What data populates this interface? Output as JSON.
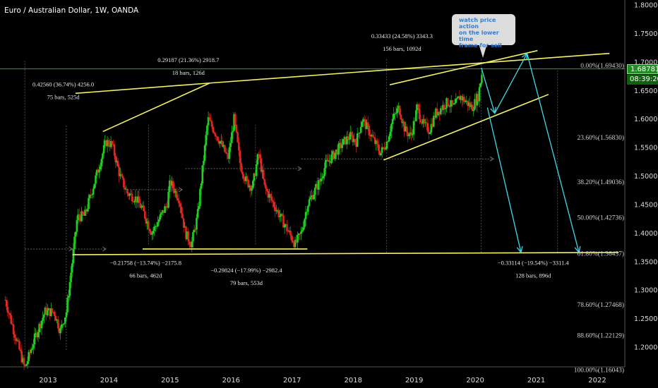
{
  "header": {
    "symbol_title": "Euro / Australian Dollar, 1W, OANDA"
  },
  "price_tags": {
    "current": "1.68781",
    "countdown": "08:39:20"
  },
  "callout": {
    "line1": "watch price action",
    "line2": "on the lower time",
    "line3": "frame for sell"
  },
  "colors": {
    "up": "#1fd11f",
    "down": "#e0261f",
    "trend": "#f5f06a",
    "projection": "#3fd9e6",
    "current_line": "#35b935",
    "text": "#ffffff",
    "axis_text": "#dddddd"
  },
  "chart_data": {
    "type": "candlestick",
    "x_labels": [
      "2013",
      "2014",
      "2015",
      "2016",
      "2017",
      "2018",
      "2019",
      "2020",
      "2021",
      "2022"
    ],
    "y_ticks": [
      "1.80000",
      "1.75000",
      "1.70000",
      "1.65000",
      "1.60000",
      "1.55000",
      "1.50000",
      "1.45000",
      "1.40000",
      "1.35000",
      "1.30000",
      "1.25000",
      "1.20000"
    ],
    "ylim": [
      1.155,
      1.81
    ],
    "xlim": [
      2012.28,
      2022.4
    ],
    "grid": false,
    "current_price": 1.68781,
    "fib_levels": [
      {
        "label": "0.00%(1.69430)",
        "price": 1.6943
      },
      {
        "label": "23.60%(1.56830)",
        "price": 1.5683
      },
      {
        "label": "38.20%(1.49036)",
        "price": 1.49036
      },
      {
        "label": "50.00%(1.42736)",
        "price": 1.42736
      },
      {
        "label": "61.80%(1.36437)",
        "price": 1.36437
      },
      {
        "label": "78.60%(1.27468)",
        "price": 1.27468
      },
      {
        "label": "88.60%(1.22129)",
        "price": 1.22129
      },
      {
        "label": "100.00%(1.16043)",
        "price": 1.16043
      }
    ],
    "path_points": [
      [
        2012.3,
        1.283
      ],
      [
        2012.45,
        1.225
      ],
      [
        2012.62,
        1.162
      ],
      [
        2012.78,
        1.215
      ],
      [
        2012.95,
        1.262
      ],
      [
        2013.1,
        1.262
      ],
      [
        2013.2,
        1.228
      ],
      [
        2013.3,
        1.262
      ],
      [
        2013.4,
        1.352
      ],
      [
        2013.48,
        1.428
      ],
      [
        2013.6,
        1.43
      ],
      [
        2013.75,
        1.485
      ],
      [
        2013.95,
        1.56
      ],
      [
        2014.05,
        1.555
      ],
      [
        2014.18,
        1.5
      ],
      [
        2014.3,
        1.47
      ],
      [
        2014.45,
        1.46
      ],
      [
        2014.55,
        1.44
      ],
      [
        2014.7,
        1.4
      ],
      [
        2014.85,
        1.43
      ],
      [
        2014.95,
        1.45
      ],
      [
        2015.0,
        1.49
      ],
      [
        2015.15,
        1.46
      ],
      [
        2015.25,
        1.4
      ],
      [
        2015.35,
        1.38
      ],
      [
        2015.45,
        1.43
      ],
      [
        2015.55,
        1.53
      ],
      [
        2015.62,
        1.6
      ],
      [
        2015.72,
        1.58
      ],
      [
        2015.82,
        1.56
      ],
      [
        2015.95,
        1.53
      ],
      [
        2016.05,
        1.6
      ],
      [
        2016.15,
        1.52
      ],
      [
        2016.25,
        1.49
      ],
      [
        2016.35,
        1.48
      ],
      [
        2016.45,
        1.54
      ],
      [
        2016.55,
        1.48
      ],
      [
        2016.65,
        1.46
      ],
      [
        2016.75,
        1.44
      ],
      [
        2016.85,
        1.42
      ],
      [
        2016.95,
        1.4
      ],
      [
        2017.05,
        1.38
      ],
      [
        2017.15,
        1.4
      ],
      [
        2017.25,
        1.45
      ],
      [
        2017.35,
        1.47
      ],
      [
        2017.45,
        1.49
      ],
      [
        2017.55,
        1.52
      ],
      [
        2017.7,
        1.54
      ],
      [
        2017.85,
        1.56
      ],
      [
        2017.95,
        1.57
      ],
      [
        2018.05,
        1.56
      ],
      [
        2018.15,
        1.6
      ],
      [
        2018.25,
        1.58
      ],
      [
        2018.35,
        1.56
      ],
      [
        2018.45,
        1.54
      ],
      [
        2018.55,
        1.56
      ],
      [
        2018.65,
        1.6
      ],
      [
        2018.75,
        1.62
      ],
      [
        2018.85,
        1.58
      ],
      [
        2018.95,
        1.57
      ],
      [
        2019.05,
        1.62
      ],
      [
        2019.15,
        1.59
      ],
      [
        2019.25,
        1.58
      ],
      [
        2019.35,
        1.61
      ],
      [
        2019.45,
        1.62
      ],
      [
        2019.55,
        1.63
      ],
      [
        2019.65,
        1.62
      ],
      [
        2019.75,
        1.64
      ],
      [
        2019.85,
        1.63
      ],
      [
        2019.95,
        1.62
      ],
      [
        2020.05,
        1.64
      ],
      [
        2020.12,
        1.688
      ]
    ],
    "trendlines": [
      {
        "from": [
          2013.45,
          1.645
        ],
        "to": [
          2015.65,
          1.663
        ]
      },
      {
        "from": [
          2013.9,
          1.578
        ],
        "to": [
          2015.65,
          1.663
        ]
      },
      {
        "from": [
          2015.65,
          1.663
        ],
        "to": [
          2022.2,
          1.715
        ]
      },
      {
        "from": [
          2018.6,
          1.66
        ],
        "to": [
          2021.02,
          1.72
        ]
      },
      {
        "from": [
          2018.5,
          1.528
        ],
        "to": [
          2021.2,
          1.643
        ]
      },
      {
        "from": [
          2013.4,
          1.362
        ],
        "to": [
          2022.35,
          1.366
        ]
      },
      {
        "from": [
          2014.55,
          1.372
        ],
        "to": [
          2017.25,
          1.372
        ]
      }
    ],
    "projections": [
      {
        "from": [
          2020.1,
          1.69
        ],
        "to": [
          2020.32,
          1.61
        ]
      },
      {
        "from": [
          2020.32,
          1.61
        ],
        "to": [
          2020.85,
          1.715
        ]
      },
      {
        "from": [
          2020.2,
          1.62
        ],
        "to": [
          2020.75,
          1.366
        ]
      },
      {
        "from": [
          2020.85,
          1.715
        ],
        "to": [
          2021.7,
          1.366
        ]
      }
    ],
    "measure_annotations": [
      {
        "line1": "0.42560 (36.74%) 4256.0",
        "line2": "75 bars, 525d",
        "x": 2013.25,
        "price": 1.657,
        "align": "middle"
      },
      {
        "line1": "0.29187 (21.36%) 2918.7",
        "line2": "18 bars, 126d",
        "x": 2015.3,
        "price": 1.7,
        "align": "middle"
      },
      {
        "line1": "0.33433 (24.58%) 3343.3",
        "line2": "156 bars, 1092d",
        "x": 2018.8,
        "price": 1.742,
        "align": "middle"
      },
      {
        "line1": "−0.21758 (−13.74%) −2175.8",
        "line2": "66 bars, 462d",
        "x": 2014.6,
        "price": 1.344,
        "align": "middle"
      },
      {
        "line1": "−0.29824 (−17.99%) −2982.4",
        "line2": "79 bars, 553d",
        "x": 2016.25,
        "price": 1.331,
        "align": "middle"
      },
      {
        "line1": "−0.33114 (−19.54%) −3311.4",
        "line2": "128 bars, 896d",
        "x": 2020.95,
        "price": 1.344,
        "align": "middle"
      }
    ],
    "guides_dashed_h": [
      {
        "from": [
          2012.62,
          1.372
        ],
        "to": [
          2013.4,
          1.372
        ]
      },
      {
        "from": [
          2013.4,
          1.372
        ],
        "to": [
          2013.95,
          1.372
        ]
      },
      {
        "from": [
          2014.3,
          1.476
        ],
        "to": [
          2015.2,
          1.476
        ]
      },
      {
        "from": [
          2015.25,
          1.513
        ],
        "to": [
          2017.15,
          1.513
        ]
      },
      {
        "from": [
          2017.15,
          1.53
        ],
        "to": [
          2020.3,
          1.53
        ]
      }
    ],
    "guides_v": [
      {
        "x": 2012.62,
        "from": 1.165,
        "to": 1.702
      },
      {
        "x": 2013.3,
        "from": 1.195,
        "to": 1.59
      },
      {
        "x": 2014.65,
        "from": 1.38,
        "to": 1.59
      },
      {
        "x": 2016.4,
        "from": 1.38,
        "to": 1.59
      },
      {
        "x": 2018.55,
        "from": 1.366,
        "to": 1.705
      },
      {
        "x": 2020.1,
        "from": 1.366,
        "to": 1.705
      },
      {
        "x": 2021.35,
        "from": 1.366,
        "to": 1.688
      }
    ]
  }
}
